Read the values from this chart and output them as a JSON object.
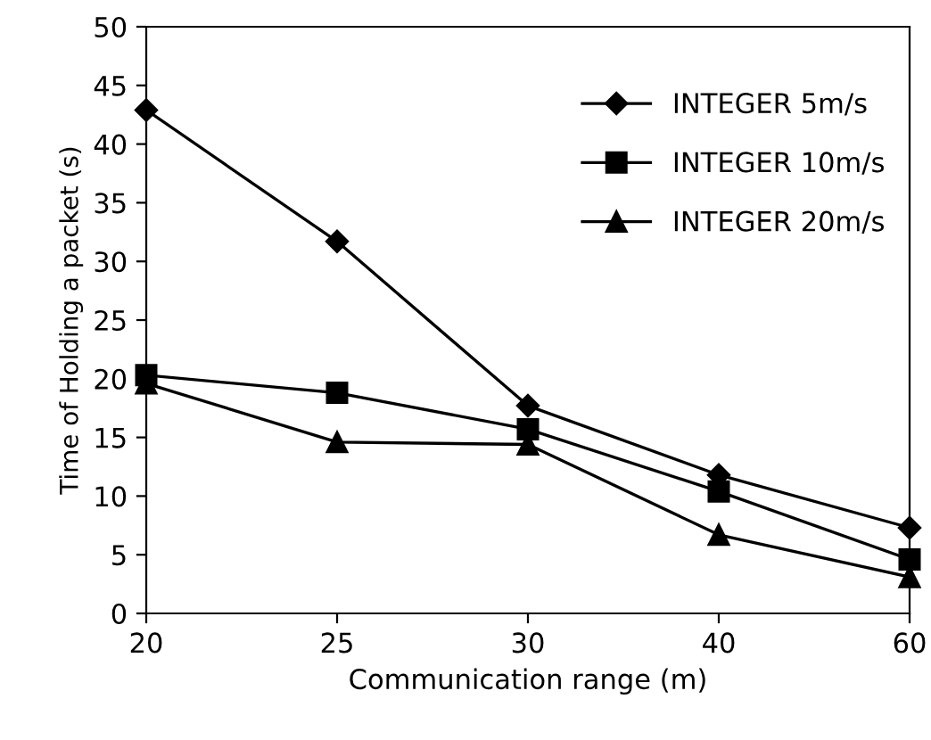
{
  "chart_data": {
    "type": "line",
    "xlabel": "Communication range (m)",
    "ylabel": "Time of Holding a packet (s)",
    "categories": [
      "20",
      "25",
      "30",
      "40",
      "60"
    ],
    "series": [
      {
        "name": "INTEGER 5m/s",
        "color": "#000000",
        "marker": "diamond",
        "values": [
          42.9,
          31.7,
          17.7,
          11.8,
          7.3
        ]
      },
      {
        "name": "INTEGER 10m/s",
        "color": "#000000",
        "marker": "square",
        "values": [
          20.3,
          18.8,
          15.7,
          10.4,
          4.6
        ]
      },
      {
        "name": "INTEGER 20m/s",
        "color": "#000000",
        "marker": "triangle",
        "values": [
          19.6,
          14.6,
          14.4,
          6.7,
          3.1
        ]
      }
    ],
    "ylim": [
      0,
      50
    ],
    "yticks": [
      0,
      5,
      10,
      15,
      20,
      25,
      30,
      35,
      40,
      45,
      50
    ],
    "grid": false,
    "legend": "top right",
    "line_style": "solid"
  }
}
